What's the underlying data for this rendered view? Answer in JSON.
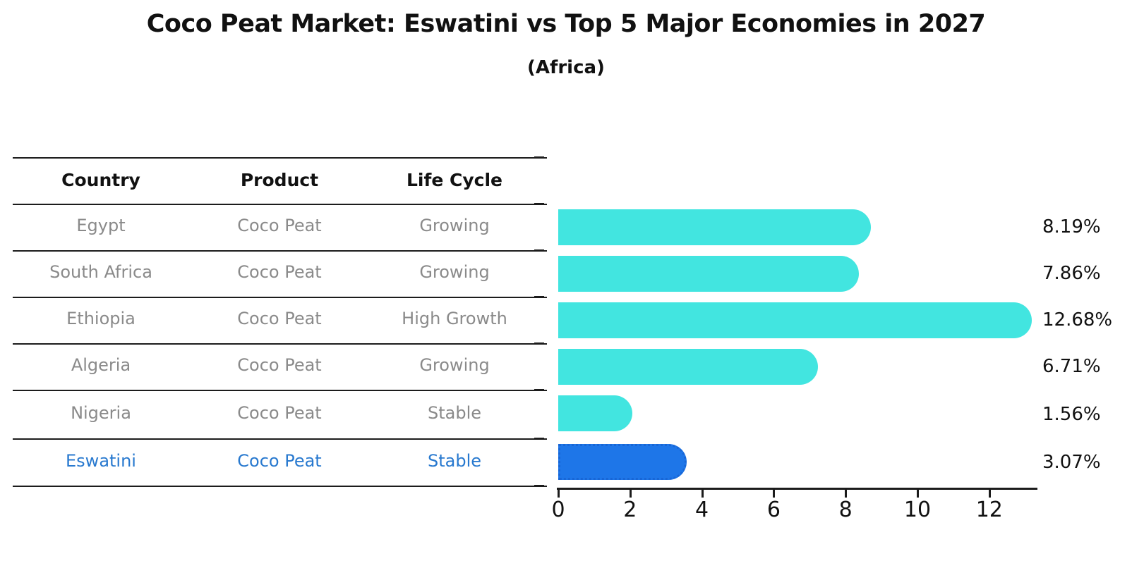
{
  "header": {
    "title": "Coco Peat Market: Eswatini vs Top 5 Major Economies in 2027",
    "subtitle": "(Africa)"
  },
  "table": {
    "columns": [
      "Country",
      "Product",
      "Life Cycle"
    ],
    "rows": [
      {
        "country": "Egypt",
        "product": "Coco Peat",
        "life_cycle": "Growing",
        "highlight": false
      },
      {
        "country": "South Africa",
        "product": "Coco Peat",
        "life_cycle": "Growing",
        "highlight": false
      },
      {
        "country": "Ethiopia",
        "product": "Coco Peat",
        "life_cycle": "High Growth",
        "highlight": false
      },
      {
        "country": "Algeria",
        "product": "Coco Peat",
        "life_cycle": "Growing",
        "highlight": false
      },
      {
        "country": "Nigeria",
        "product": "Coco Peat",
        "life_cycle": "Stable",
        "highlight": false
      },
      {
        "country": "Eswatini",
        "product": "Coco Peat",
        "life_cycle": "Stable",
        "highlight": true
      }
    ]
  },
  "chart_data": {
    "type": "bar",
    "orientation": "horizontal",
    "title": "Coco Peat Market: Eswatini vs Top 5 Major Economies in 2027",
    "subtitle": "(Africa)",
    "categories": [
      "Egypt",
      "South Africa",
      "Ethiopia",
      "Algeria",
      "Nigeria",
      "Eswatini"
    ],
    "values": [
      8.19,
      7.86,
      12.68,
      6.71,
      1.56,
      3.07
    ],
    "value_labels": [
      "8.19%",
      "7.86%",
      "12.68%",
      "6.71%",
      "1.56%",
      "3.07%"
    ],
    "xlabel": "",
    "ylabel": "",
    "xlim": [
      0,
      13.3
    ],
    "xticks": [
      0,
      2,
      4,
      6,
      8,
      10,
      12
    ],
    "grid": false,
    "legend": false,
    "bar_color": "#42E5E0",
    "highlight_color": "#1E76E8",
    "highlight_index": 5,
    "highlight_text_color": "#2879cf",
    "text_color": "#8a8a8a"
  }
}
